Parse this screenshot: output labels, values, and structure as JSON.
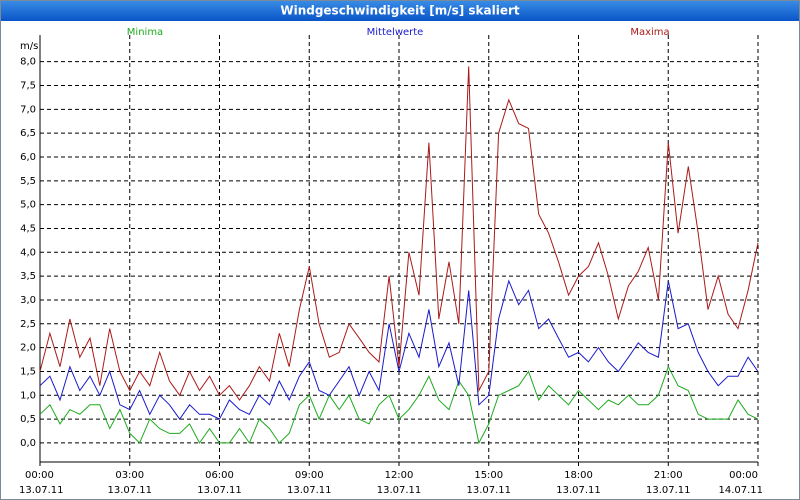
{
  "chart_data": {
    "type": "line",
    "title": "Windgeschwindigkeit [m/s] skaliert",
    "y_unit": "m/s",
    "x": [
      0,
      0.33,
      0.67,
      1,
      1.33,
      1.67,
      2,
      2.33,
      2.67,
      3,
      3.33,
      3.67,
      4,
      4.33,
      4.67,
      5,
      5.33,
      5.67,
      6,
      6.33,
      6.67,
      7,
      7.33,
      7.67,
      8,
      8.33,
      8.67,
      9,
      9.33,
      9.67,
      10,
      10.33,
      10.67,
      11,
      11.33,
      11.67,
      12,
      12.33,
      12.67,
      13,
      13.33,
      13.67,
      14,
      14.33,
      14.67,
      15,
      15.33,
      15.67,
      16,
      16.33,
      16.67,
      17,
      17.33,
      17.67,
      18,
      18.33,
      18.67,
      19,
      19.33,
      19.67,
      20,
      20.33,
      20.67,
      21,
      21.33,
      21.67,
      22,
      22.33,
      22.67,
      23,
      23.33,
      23.67,
      24
    ],
    "series": [
      {
        "name": "Minima",
        "color": "#1faa1f",
        "values": [
          0.6,
          0.8,
          0.4,
          0.7,
          0.6,
          0.8,
          0.8,
          0.3,
          0.7,
          0.2,
          0.0,
          0.5,
          0.3,
          0.2,
          0.2,
          0.4,
          0.0,
          0.3,
          0.0,
          0.0,
          0.3,
          0.0,
          0.5,
          0.3,
          0.0,
          0.2,
          0.8,
          1.0,
          0.5,
          1.0,
          0.7,
          1.0,
          0.5,
          0.4,
          0.8,
          1.0,
          0.5,
          0.7,
          1.0,
          1.4,
          0.9,
          0.7,
          1.3,
          1.0,
          0.0,
          0.4,
          1.0,
          1.1,
          1.2,
          1.5,
          0.9,
          1.2,
          1.0,
          0.8,
          1.1,
          0.9,
          0.7,
          0.9,
          0.8,
          1.0,
          0.8,
          0.8,
          1.0,
          1.6,
          1.2,
          1.1,
          0.6,
          0.5,
          0.5,
          0.5,
          0.9,
          0.6,
          0.5
        ]
      },
      {
        "name": "Mittelwerte",
        "color": "#1a1acc",
        "values": [
          1.2,
          1.4,
          0.9,
          1.6,
          1.1,
          1.4,
          1.0,
          1.5,
          0.8,
          0.7,
          1.1,
          0.6,
          1.0,
          0.8,
          0.5,
          0.8,
          0.6,
          0.6,
          0.5,
          0.9,
          0.7,
          0.6,
          1.0,
          0.8,
          1.3,
          0.9,
          1.4,
          1.7,
          1.1,
          1.0,
          1.3,
          1.6,
          1.0,
          1.5,
          1.1,
          2.5,
          1.5,
          2.3,
          1.8,
          2.8,
          1.6,
          2.1,
          1.2,
          3.2,
          0.8,
          1.0,
          2.6,
          3.4,
          2.9,
          3.2,
          2.4,
          2.6,
          2.2,
          1.8,
          1.9,
          1.7,
          2.0,
          1.7,
          1.5,
          1.8,
          2.1,
          1.9,
          1.8,
          3.4,
          2.4,
          2.5,
          1.9,
          1.5,
          1.2,
          1.4,
          1.4,
          1.8,
          1.5
        ]
      },
      {
        "name": "Maxima",
        "color": "#aa1a1a",
        "values": [
          1.5,
          2.3,
          1.6,
          2.6,
          1.8,
          2.2,
          1.2,
          2.4,
          1.5,
          1.1,
          1.5,
          1.2,
          1.9,
          1.3,
          1.0,
          1.5,
          1.1,
          1.4,
          1.0,
          1.2,
          0.9,
          1.2,
          1.6,
          1.3,
          2.3,
          1.6,
          2.8,
          3.7,
          2.5,
          1.8,
          1.9,
          2.5,
          2.2,
          1.9,
          1.7,
          3.5,
          1.6,
          4.0,
          3.1,
          6.3,
          2.6,
          3.8,
          2.5,
          7.9,
          1.1,
          1.5,
          6.5,
          7.2,
          6.7,
          6.6,
          4.8,
          4.4,
          3.8,
          3.1,
          3.5,
          3.7,
          4.2,
          3.5,
          2.6,
          3.3,
          3.6,
          4.1,
          3.0,
          6.3,
          4.4,
          5.8,
          4.4,
          2.8,
          3.5,
          2.7,
          2.4,
          3.2,
          4.2
        ]
      }
    ],
    "xlim": [
      0,
      24
    ],
    "xticks": [
      {
        "value": 0,
        "label": "00:00",
        "date": "13.07.11"
      },
      {
        "value": 3,
        "label": "03:00",
        "date": "13.07.11"
      },
      {
        "value": 6,
        "label": "06:00",
        "date": "13.07.11"
      },
      {
        "value": 9,
        "label": "09:00",
        "date": "13.07.11"
      },
      {
        "value": 12,
        "label": "12:00",
        "date": "13.07.11"
      },
      {
        "value": 15,
        "label": "15:00",
        "date": "13.07.11"
      },
      {
        "value": 18,
        "label": "18:00",
        "date": "13.07.11"
      },
      {
        "value": 21,
        "label": "21:00",
        "date": "13.07.11"
      },
      {
        "value": 24,
        "label": "00:00",
        "date": "14.07.11"
      }
    ],
    "ylim": [
      -0.4,
      8.35
    ],
    "yticks": [
      {
        "value": 0,
        "label": "0,0"
      },
      {
        "value": 0.5,
        "label": "0,5"
      },
      {
        "value": 1,
        "label": "1,0"
      },
      {
        "value": 1.5,
        "label": "1,5"
      },
      {
        "value": 2,
        "label": "2,0"
      },
      {
        "value": 2.5,
        "label": "2,5"
      },
      {
        "value": 3,
        "label": "3,0"
      },
      {
        "value": 3.5,
        "label": "3,5"
      },
      {
        "value": 4,
        "label": "4,0"
      },
      {
        "value": 4.5,
        "label": "4,5"
      },
      {
        "value": 5,
        "label": "5,0"
      },
      {
        "value": 5.5,
        "label": "5,5"
      },
      {
        "value": 6,
        "label": "6,0"
      },
      {
        "value": 6.5,
        "label": "6,5"
      },
      {
        "value": 7,
        "label": "7,0"
      },
      {
        "value": 7.5,
        "label": "7,5"
      },
      {
        "value": 8,
        "label": "8,0"
      }
    ],
    "grid": true
  }
}
